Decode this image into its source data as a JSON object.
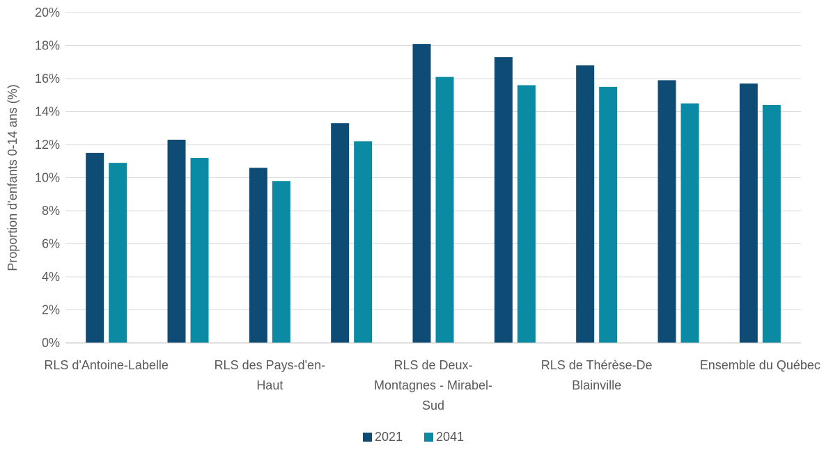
{
  "chart_data": {
    "type": "bar",
    "title": "",
    "xlabel": "",
    "ylabel": "Proportion d'enfants 0-14 ans  (%)",
    "ylim": [
      0,
      20
    ],
    "y_tick_step": 2,
    "y_tick_format": "percent",
    "grid": true,
    "legend_position": "bottom",
    "categories": [
      {
        "id": "c0",
        "label_lines": [
          "RLS d'Antoine-Labelle"
        ]
      },
      {
        "id": "c1",
        "label_lines": []
      },
      {
        "id": "c2",
        "label_lines": [
          "RLS des Pays-d'en-",
          "Haut"
        ]
      },
      {
        "id": "c3",
        "label_lines": []
      },
      {
        "id": "c4",
        "label_lines": [
          "RLS de Deux-",
          "Montagnes - Mirabel-",
          "Sud"
        ]
      },
      {
        "id": "c5",
        "label_lines": []
      },
      {
        "id": "c6",
        "label_lines": [
          "RLS de Thérèse-De",
          "Blainville"
        ]
      },
      {
        "id": "c7",
        "label_lines": []
      },
      {
        "id": "c8",
        "label_lines": [
          "Ensemble du Québec"
        ]
      }
    ],
    "series": [
      {
        "name": "2021",
        "color": "#0f4c75",
        "values": [
          11.5,
          12.3,
          10.6,
          13.3,
          18.1,
          17.3,
          16.8,
          15.9,
          15.7
        ]
      },
      {
        "name": "2041",
        "color": "#0a8aa3",
        "values": [
          10.9,
          11.2,
          9.8,
          12.2,
          16.1,
          15.6,
          15.5,
          14.5,
          14.4
        ]
      }
    ]
  }
}
